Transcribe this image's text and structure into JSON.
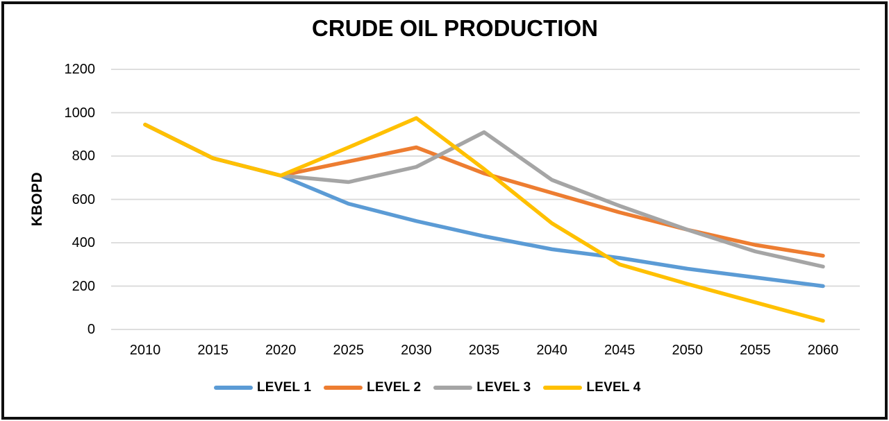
{
  "chart_data": {
    "type": "line",
    "title": "CRUDE OIL PRODUCTION",
    "xlabel": "",
    "ylabel": "KBOPD",
    "categories": [
      "2010",
      "2015",
      "2020",
      "2025",
      "2030",
      "2035",
      "2040",
      "2045",
      "2050",
      "2055",
      "2060"
    ],
    "y_ticks": [
      0,
      200,
      400,
      600,
      800,
      1000,
      1200
    ],
    "ylim": [
      0,
      1200
    ],
    "grid": "horizontal-only",
    "legend_position": "bottom",
    "series": [
      {
        "name": "LEVEL 1",
        "color": "#5B9BD5",
        "values": [
          945,
          790,
          710,
          580,
          500,
          430,
          370,
          330,
          280,
          240,
          200
        ]
      },
      {
        "name": "LEVEL 2",
        "color": "#ED7D31",
        "values": [
          945,
          790,
          710,
          775,
          840,
          720,
          630,
          540,
          460,
          390,
          340
        ]
      },
      {
        "name": "LEVEL 3",
        "color": "#A5A5A5",
        "values": [
          945,
          790,
          710,
          680,
          750,
          910,
          690,
          570,
          460,
          360,
          290
        ]
      },
      {
        "name": "LEVEL 4",
        "color": "#FFC000",
        "values": [
          945,
          790,
          710,
          840,
          975,
          740,
          490,
          300,
          210,
          125,
          40
        ]
      }
    ]
  },
  "colors": {
    "gridline": "#D9D9D9",
    "frame_border": "#0F0F0F",
    "text": "#000000",
    "background": "#FFFFFF"
  }
}
